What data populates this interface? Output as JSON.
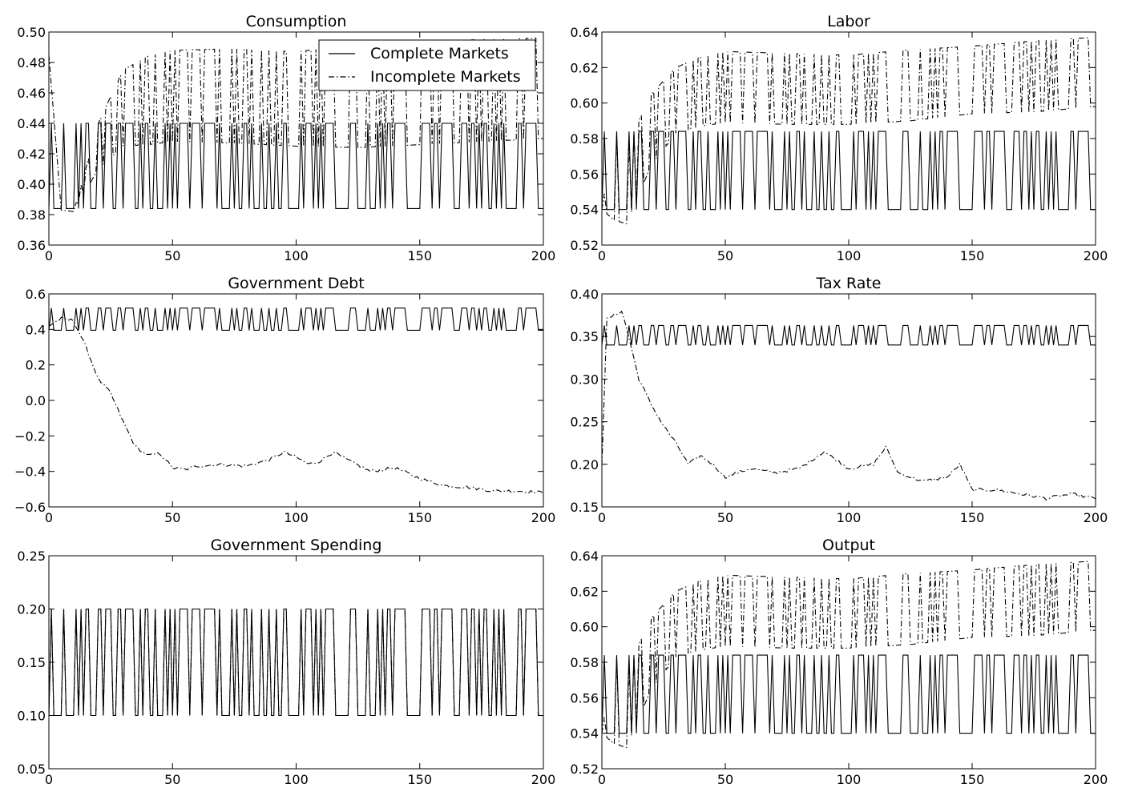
{
  "figure": {
    "legend_position": "top-right of Consumption panel",
    "line_color": "#000000",
    "background": "#ffffff"
  },
  "legend": {
    "position": "upper right",
    "entries": [
      {
        "label": "Complete Markets",
        "style": "solid"
      },
      {
        "label": "Incomplete Markets",
        "style": "dashdot"
      }
    ]
  },
  "chart_data": [
    {
      "type": "line",
      "title": "Consumption",
      "xlabel": "",
      "ylabel": "",
      "xlim": [
        0,
        200
      ],
      "ylim": [
        0.36,
        0.5
      ],
      "xticks": [
        "0",
        "50",
        "100",
        "150",
        "200"
      ],
      "yticks": [
        "0.36",
        "0.38",
        "0.40",
        "0.42",
        "0.44",
        "0.46",
        "0.48",
        "0.50"
      ],
      "grid": false,
      "series": [
        {
          "name": "Complete Markets",
          "style": "solid",
          "x": [
            0,
            200
          ],
          "y": [
            0.44,
            0.44
          ],
          "levels": [
            0.384,
            0.44
          ]
        },
        {
          "name": "Incomplete Markets",
          "style": "dashdot",
          "x": [
            0,
            5,
            10,
            20,
            30,
            40,
            50,
            75,
            100,
            125,
            150,
            175,
            200
          ],
          "y": [
            0.485,
            0.383,
            0.382,
            0.44,
            0.475,
            0.484,
            0.488,
            0.489,
            0.487,
            0.492,
            0.494,
            0.495,
            0.496
          ],
          "y_low": [
            0.485,
            0.383,
            0.382,
            0.41,
            0.425,
            0.426,
            0.428,
            0.427,
            0.425,
            0.424,
            0.426,
            0.428,
            0.43
          ]
        }
      ]
    },
    {
      "type": "line",
      "title": "Labor",
      "xlabel": "",
      "ylabel": "",
      "xlim": [
        0,
        200
      ],
      "ylim": [
        0.52,
        0.64
      ],
      "xticks": [
        "0",
        "50",
        "100",
        "150",
        "200"
      ],
      "yticks": [
        "0.52",
        "0.54",
        "0.56",
        "0.58",
        "0.60",
        "0.62",
        "0.64"
      ],
      "grid": false,
      "series": [
        {
          "name": "Complete Markets",
          "style": "solid",
          "x": [
            0,
            200
          ],
          "y": [
            0.584,
            0.584
          ],
          "levels": [
            0.54,
            0.584
          ]
        },
        {
          "name": "Incomplete Markets",
          "style": "dashdot",
          "x": [
            0,
            5,
            10,
            20,
            30,
            40,
            50,
            75,
            100,
            125,
            150,
            175,
            200
          ],
          "y": [
            0.54,
            0.585,
            0.575,
            0.605,
            0.62,
            0.626,
            0.629,
            0.628,
            0.627,
            0.63,
            0.632,
            0.635,
            0.637
          ],
          "y_low": [
            0.54,
            0.534,
            0.532,
            0.565,
            0.583,
            0.587,
            0.589,
            0.588,
            0.588,
            0.59,
            0.594,
            0.595,
            0.598
          ]
        }
      ]
    },
    {
      "type": "line",
      "title": "Government Debt",
      "xlabel": "",
      "ylabel": "",
      "xlim": [
        0,
        200
      ],
      "ylim": [
        -0.6,
        0.6
      ],
      "xticks": [
        "0",
        "50",
        "100",
        "150",
        "200"
      ],
      "yticks": [
        "−0.6",
        "−0.4",
        "−0.2",
        "0.0",
        "0.2",
        "0.4",
        "0.6"
      ],
      "grid": false,
      "series": [
        {
          "name": "Complete Markets",
          "style": "solid",
          "x": [
            0,
            200
          ],
          "y": [
            0.52,
            0.52
          ],
          "levels": [
            0.395,
            0.52
          ]
        },
        {
          "name": "Incomplete Markets",
          "style": "dashdot",
          "x": [
            0,
            5,
            10,
            15,
            20,
            25,
            30,
            35,
            40,
            45,
            50,
            55,
            60,
            70,
            80,
            90,
            95,
            100,
            105,
            110,
            115,
            120,
            130,
            140,
            150,
            160,
            170,
            180,
            190,
            200
          ],
          "y": [
            0.42,
            0.46,
            0.45,
            0.3,
            0.12,
            0.04,
            -0.12,
            -0.26,
            -0.31,
            -0.3,
            -0.38,
            -0.39,
            -0.37,
            -0.36,
            -0.37,
            -0.33,
            -0.29,
            -0.32,
            -0.36,
            -0.34,
            -0.29,
            -0.33,
            -0.4,
            -0.38,
            -0.44,
            -0.48,
            -0.49,
            -0.51,
            -0.51,
            -0.52
          ]
        }
      ]
    },
    {
      "type": "line",
      "title": "Tax Rate",
      "xlabel": "",
      "ylabel": "",
      "xlim": [
        0,
        200
      ],
      "ylim": [
        0.15,
        0.4
      ],
      "xticks": [
        "0",
        "50",
        "100",
        "150",
        "200"
      ],
      "yticks": [
        "0.15",
        "0.20",
        "0.25",
        "0.30",
        "0.35",
        "0.40"
      ],
      "grid": false,
      "series": [
        {
          "name": "Complete Markets",
          "style": "solid",
          "x": [
            0,
            200
          ],
          "y": [
            0.363,
            0.363
          ],
          "levels": [
            0.34,
            0.363
          ]
        },
        {
          "name": "Incomplete Markets",
          "style": "dashdot",
          "x": [
            0,
            2,
            5,
            8,
            10,
            15,
            20,
            25,
            30,
            35,
            40,
            45,
            50,
            60,
            70,
            80,
            90,
            100,
            110,
            115,
            120,
            130,
            140,
            145,
            150,
            160,
            170,
            180,
            190,
            200
          ],
          "y": [
            0.2,
            0.37,
            0.375,
            0.38,
            0.36,
            0.3,
            0.27,
            0.245,
            0.225,
            0.2,
            0.21,
            0.2,
            0.185,
            0.195,
            0.19,
            0.195,
            0.215,
            0.195,
            0.2,
            0.22,
            0.19,
            0.18,
            0.185,
            0.2,
            0.17,
            0.17,
            0.165,
            0.16,
            0.165,
            0.16
          ]
        }
      ]
    },
    {
      "type": "line",
      "title": "Government Spending",
      "xlabel": "",
      "ylabel": "",
      "xlim": [
        0,
        200
      ],
      "ylim": [
        0.05,
        0.25
      ],
      "xticks": [
        "0",
        "50",
        "100",
        "150",
        "200"
      ],
      "yticks": [
        "0.05",
        "0.10",
        "0.15",
        "0.20",
        "0.25"
      ],
      "grid": false,
      "series": [
        {
          "name": "Complete Markets",
          "style": "solid",
          "x": [
            0,
            200
          ],
          "y": [
            0.2,
            0.2
          ],
          "levels": [
            0.1,
            0.2
          ]
        },
        {
          "name": "Incomplete Markets",
          "style": "dashdot",
          "x": [
            0,
            200
          ],
          "y": [
            0.2,
            0.2
          ],
          "levels": [
            0.1,
            0.2
          ]
        }
      ]
    },
    {
      "type": "line",
      "title": "Output",
      "xlabel": "",
      "ylabel": "",
      "xlim": [
        0,
        200
      ],
      "ylim": [
        0.52,
        0.64
      ],
      "xticks": [
        "0",
        "50",
        "100",
        "150",
        "200"
      ],
      "yticks": [
        "0.52",
        "0.54",
        "0.56",
        "0.58",
        "0.60",
        "0.62",
        "0.64"
      ],
      "grid": false,
      "series": [
        {
          "name": "Complete Markets",
          "style": "solid",
          "x": [
            0,
            200
          ],
          "y": [
            0.584,
            0.584
          ],
          "levels": [
            0.54,
            0.584
          ]
        },
        {
          "name": "Incomplete Markets",
          "style": "dashdot",
          "x": [
            0,
            5,
            10,
            20,
            30,
            40,
            50,
            75,
            100,
            125,
            150,
            175,
            200
          ],
          "y": [
            0.54,
            0.585,
            0.575,
            0.605,
            0.62,
            0.626,
            0.629,
            0.628,
            0.627,
            0.63,
            0.632,
            0.635,
            0.637
          ],
          "y_low": [
            0.54,
            0.534,
            0.532,
            0.565,
            0.583,
            0.587,
            0.589,
            0.588,
            0.588,
            0.59,
            0.594,
            0.595,
            0.598
          ]
        }
      ]
    }
  ]
}
